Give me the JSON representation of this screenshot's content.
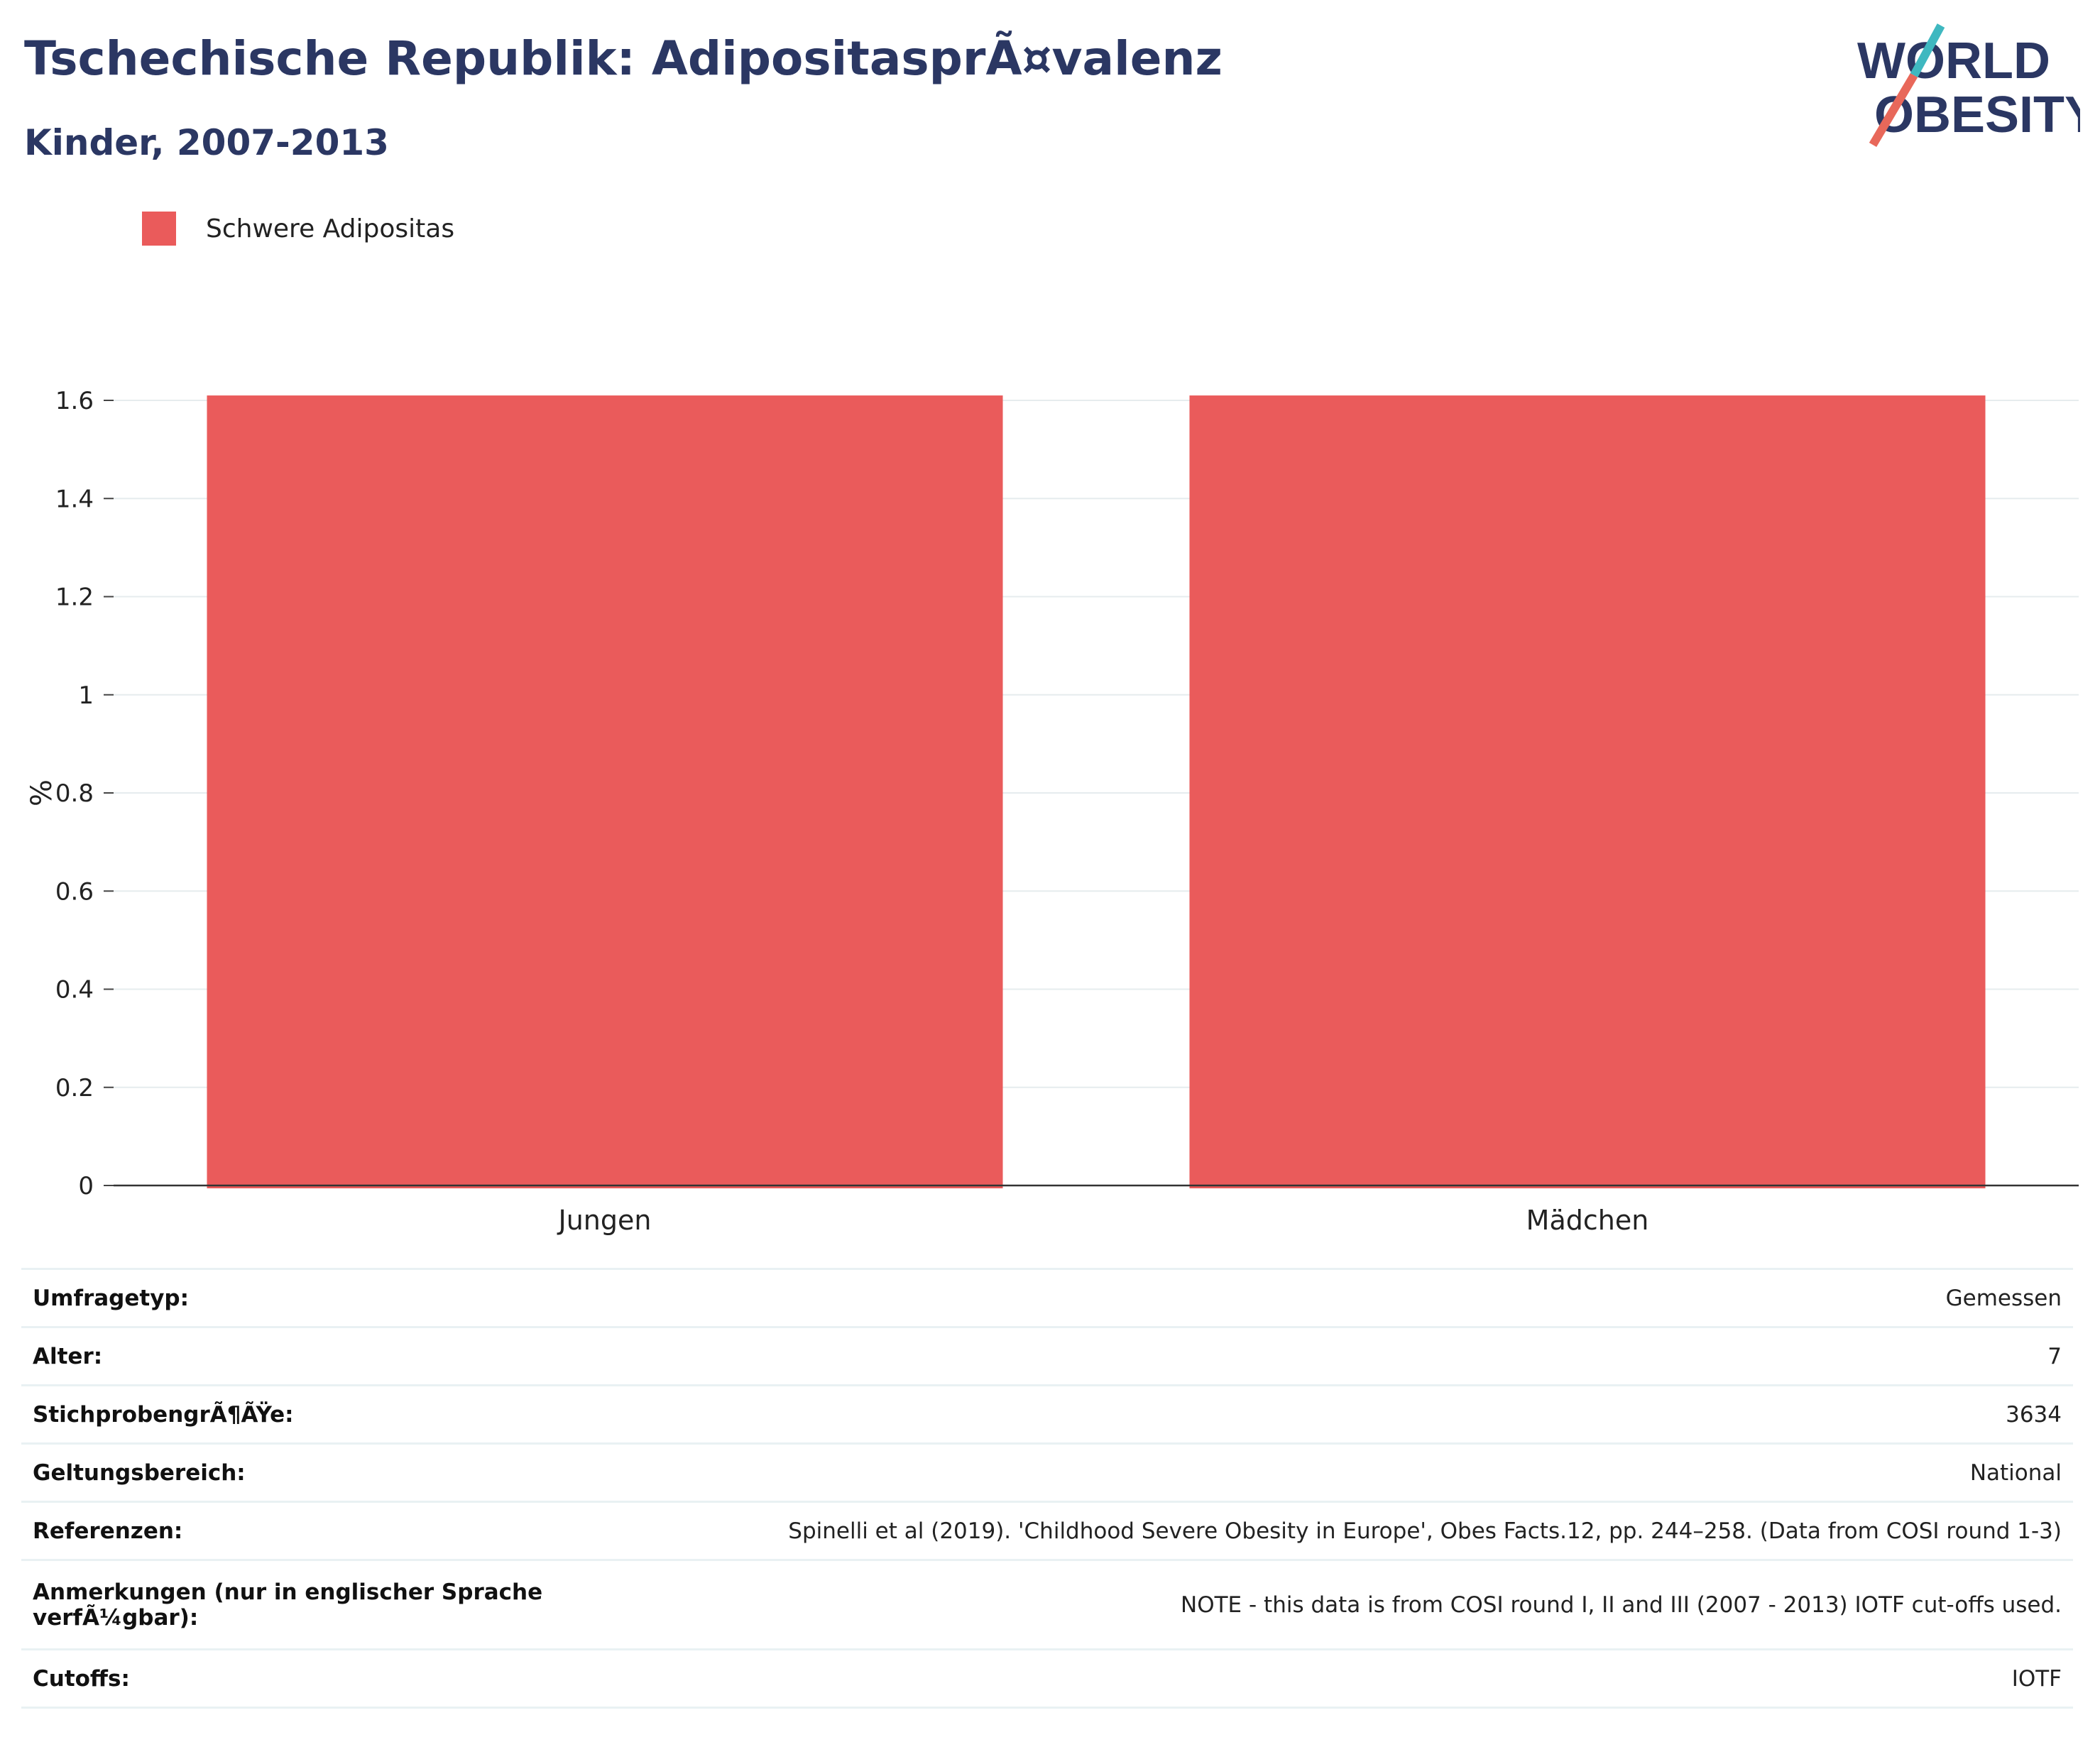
{
  "header": {
    "title": "Tschechische Republik: AdipositasprÃ¤valenz",
    "subtitle": "Kinder, 2007-2013"
  },
  "logo": {
    "line1": "WORLD",
    "line2": "OBESITY",
    "colors": {
      "text": "#2b3763",
      "slash_red": "#e8685a",
      "slash_teal": "#3fb8c0"
    }
  },
  "legend": {
    "items": [
      {
        "label": "Schwere Adipositas",
        "color": "#ea5b5b"
      }
    ]
  },
  "chart_data": {
    "type": "bar",
    "categories": [
      "Jungen",
      "Mädchen"
    ],
    "series": [
      {
        "name": "Schwere Adipositas",
        "values": [
          1.61,
          1.61
        ],
        "color": "#ea5b5b"
      }
    ],
    "title": "Tschechische Republik: AdipositasprÃ¤valenz",
    "subtitle": "Kinder, 2007-2013",
    "xlabel": "",
    "ylabel": "%",
    "ylim": [
      0,
      1.6
    ],
    "yticks": [
      0,
      0.2,
      0.4,
      0.6,
      0.8,
      1,
      1.2,
      1.4,
      1.6
    ],
    "ytick_labels": [
      "0",
      "0.2",
      "0.4",
      "0.6",
      "0.8",
      "1",
      "1.2",
      "1.4",
      "1.6"
    ],
    "grid": true,
    "legend_position": "top-left"
  },
  "info": {
    "rows": [
      {
        "key": "Umfragetyp:",
        "value": "Gemessen"
      },
      {
        "key": "Alter:",
        "value": "7"
      },
      {
        "key": "StichprobengrÃ¶ÃŸe:",
        "value": "3634"
      },
      {
        "key": "Geltungsbereich:",
        "value": "National"
      },
      {
        "key": "Referenzen:",
        "value": "Spinelli et al (2019). 'Childhood Severe Obesity in Europe', Obes Facts.12, pp. 244–258. (Data from COSI round 1-3)"
      },
      {
        "key": "Anmerkungen (nur in englischer Sprache verfÃ¼gbar):",
        "value": "NOTE - this data is from COSI round I, II and III (2007 - 2013) IOTF cut-offs used."
      },
      {
        "key": "Cutoffs:",
        "value": "IOTF"
      }
    ]
  }
}
